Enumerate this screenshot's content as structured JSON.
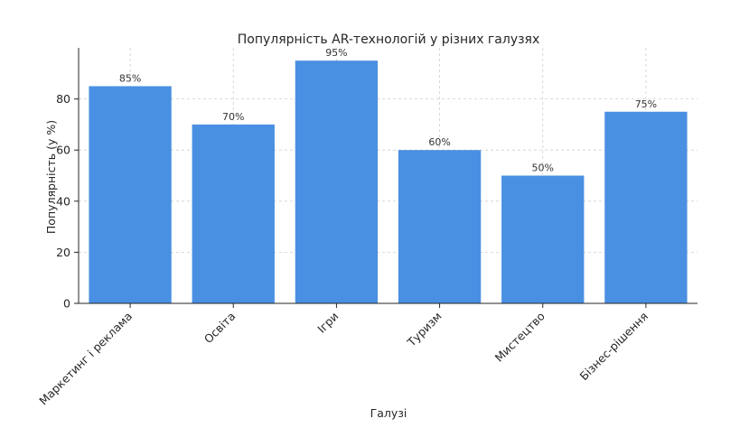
{
  "chart_data": {
    "type": "bar",
    "title": "Популярність AR-технологій у різних галузях",
    "xlabel": "Галузі",
    "ylabel": "Популярність (у %)",
    "categories": [
      "Маркетинг і реклама",
      "Освіта",
      "Ігри",
      "Туризм",
      "Мистецтво",
      "Бізнес-рішення"
    ],
    "values": [
      85,
      70,
      95,
      60,
      50,
      75
    ],
    "data_labels": [
      "85%",
      "70%",
      "95%",
      "60%",
      "50%",
      "75%"
    ],
    "ylim": [
      0,
      100
    ],
    "yticks": [
      0,
      20,
      40,
      60,
      80
    ],
    "bar_color": "#4a90e2",
    "grid": true,
    "legend": "none"
  }
}
